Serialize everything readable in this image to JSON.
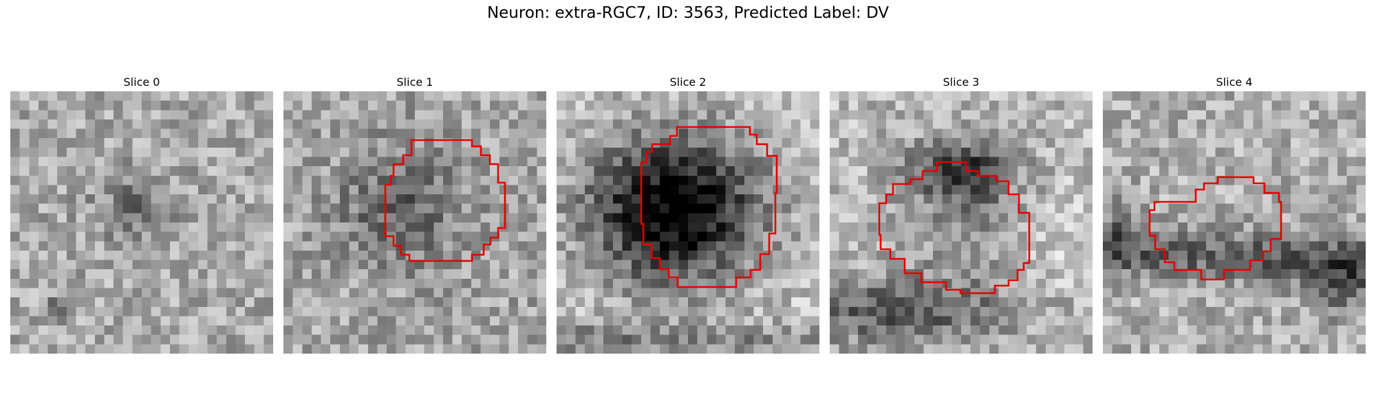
{
  "figure": {
    "title": "Neuron: extra-RGC7, ID: 3563, Predicted Label: DV"
  },
  "slices": [
    {
      "label": "Slice 0",
      "has_contour": false
    },
    {
      "label": "Slice 1",
      "has_contour": true
    },
    {
      "label": "Slice 2",
      "has_contour": true
    },
    {
      "label": "Slice 3",
      "has_contour": true
    },
    {
      "label": "Slice 4",
      "has_contour": true
    }
  ],
  "colors": {
    "contour": "#e60000",
    "background": "#ffffff"
  }
}
